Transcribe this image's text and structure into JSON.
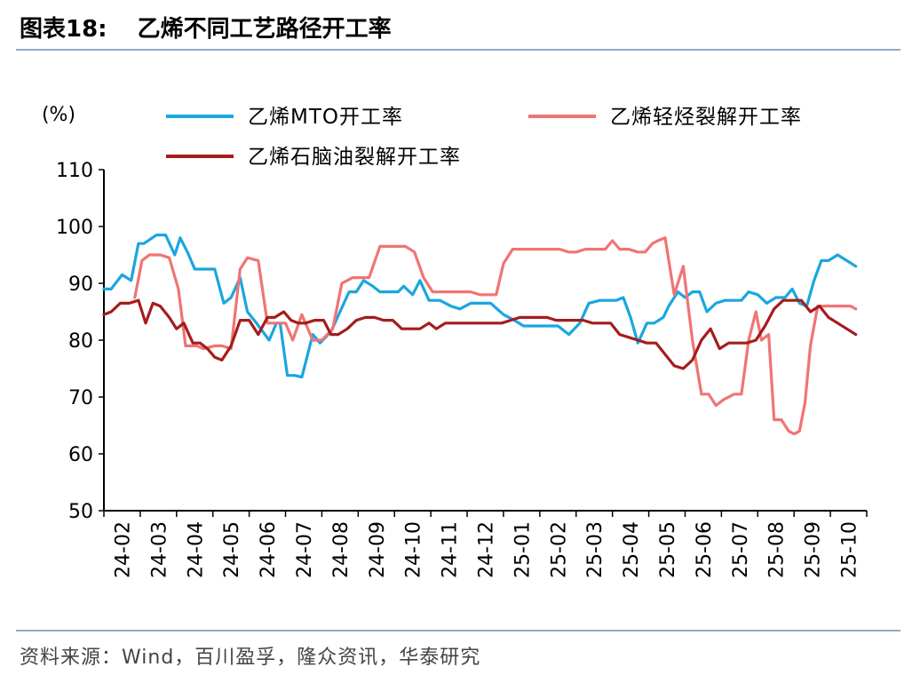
{
  "header": {
    "figure_label": "图表18:",
    "title": "乙烯不同工艺路径开工率"
  },
  "footer": {
    "source": "资料来源：Wind，百川盈孚，隆众资讯，华泰研究"
  },
  "colors": {
    "mto": "#1aa6df",
    "light": "#f07474",
    "naphtha": "#a61c1c",
    "rule": "#8ea9c8"
  },
  "chart_data": {
    "type": "line",
    "title": "乙烯不同工艺路径开工率",
    "ylabel": "(%)",
    "xlabel": "",
    "ylim": [
      50,
      110
    ],
    "yticks": [
      50,
      60,
      70,
      80,
      90,
      100,
      110
    ],
    "xlim": [
      0,
      21
    ],
    "xticks": [
      {
        "pos": 0,
        "label": "24-02"
      },
      {
        "pos": 1,
        "label": "24-03"
      },
      {
        "pos": 2,
        "label": "24-04"
      },
      {
        "pos": 3,
        "label": "24-05"
      },
      {
        "pos": 4,
        "label": "24-06"
      },
      {
        "pos": 5,
        "label": "24-07"
      },
      {
        "pos": 6,
        "label": "24-08"
      },
      {
        "pos": 7,
        "label": "24-09"
      },
      {
        "pos": 8,
        "label": "24-10"
      },
      {
        "pos": 9,
        "label": "24-11"
      },
      {
        "pos": 10,
        "label": "24-12"
      },
      {
        "pos": 11,
        "label": "25-01"
      },
      {
        "pos": 12,
        "label": "25-02"
      },
      {
        "pos": 13,
        "label": "25-03"
      },
      {
        "pos": 14,
        "label": "25-04"
      },
      {
        "pos": 15,
        "label": "25-05"
      },
      {
        "pos": 16,
        "label": "25-06"
      },
      {
        "pos": 17,
        "label": "25-07"
      },
      {
        "pos": 18,
        "label": "25-08"
      },
      {
        "pos": 19,
        "label": "25-09"
      },
      {
        "pos": 20,
        "label": "25-10"
      }
    ],
    "legend_position": "top",
    "series": [
      {
        "name": "乙烯MTO开工率",
        "color": "#1aa6df",
        "x": [
          0,
          0.2,
          0.5,
          0.75,
          0.95,
          1.1,
          1.45,
          1.7,
          1.95,
          2.1,
          2.3,
          2.5,
          2.75,
          3.05,
          3.3,
          3.5,
          3.75,
          3.95,
          4.2,
          4.55,
          4.75,
          4.85,
          5.05,
          5.25,
          5.45,
          5.75,
          5.95,
          6.25,
          6.5,
          6.75,
          6.95,
          7.15,
          7.4,
          7.6,
          7.85,
          8.1,
          8.25,
          8.5,
          8.7,
          8.95,
          9.25,
          9.55,
          9.8,
          10.1,
          10.4,
          10.65,
          11.0,
          11.3,
          11.55,
          11.8,
          12.15,
          12.5,
          12.8,
          13.1,
          13.35,
          13.65,
          13.9,
          14.1,
          14.3,
          14.5,
          14.7,
          14.95,
          15.15,
          15.4,
          15.55,
          15.8,
          16.0,
          16.2,
          16.4,
          16.6,
          16.85,
          17.1,
          17.35,
          17.55,
          17.75,
          18.0,
          18.25,
          18.5,
          18.75,
          18.95,
          19.15,
          19.35,
          19.55,
          19.75,
          19.95,
          20.2,
          20.45,
          20.7
        ],
        "y": [
          89,
          89,
          91.5,
          90.5,
          97,
          97,
          98.5,
          98.5,
          95,
          98,
          95.5,
          92.5,
          92.5,
          92.5,
          86.5,
          87.5,
          91,
          85,
          83,
          80,
          83,
          83,
          73.8,
          73.8,
          73.5,
          81,
          79.5,
          81.5,
          85,
          88.5,
          88.5,
          90.5,
          89.5,
          88.5,
          88.5,
          88.5,
          89.5,
          88,
          90.5,
          87,
          87,
          86,
          85.5,
          86.5,
          86.5,
          86.5,
          84.5,
          83.5,
          82.5,
          82.5,
          82.5,
          82.5,
          81,
          83,
          86.5,
          87,
          87,
          87,
          87.5,
          84,
          79.5,
          83,
          83,
          84,
          86,
          88.5,
          87.5,
          88.5,
          88.5,
          85,
          86.5,
          87,
          87,
          87,
          88.5,
          88,
          86.5,
          87.5,
          87.5,
          89,
          86.5,
          86,
          90.5,
          94,
          94,
          95,
          94,
          93
        ]
      },
      {
        "name": "乙烯轻烃裂解开工率",
        "color": "#f07474",
        "x": [
          0.85,
          1.05,
          1.25,
          1.55,
          1.8,
          2.05,
          2.25,
          2.55,
          2.75,
          3.05,
          3.25,
          3.5,
          3.75,
          3.95,
          4.25,
          4.5,
          4.75,
          5.0,
          5.2,
          5.45,
          5.75,
          6.0,
          6.3,
          6.55,
          6.85,
          7.05,
          7.3,
          7.6,
          7.85,
          8.05,
          8.3,
          8.55,
          8.8,
          9.05,
          9.3,
          9.6,
          9.85,
          10.1,
          10.35,
          10.55,
          10.8,
          11.0,
          11.25,
          11.5,
          11.75,
          12.0,
          12.3,
          12.55,
          12.8,
          13.0,
          13.25,
          13.55,
          13.8,
          14.0,
          14.2,
          14.45,
          14.7,
          14.9,
          15.1,
          15.25,
          15.45,
          15.7,
          15.95,
          16.2,
          16.45,
          16.65,
          16.85,
          17.05,
          17.35,
          17.55,
          17.75,
          17.95,
          18.1,
          18.3,
          18.45,
          18.65,
          18.85,
          19.0,
          19.15,
          19.3,
          19.45,
          19.65,
          19.85,
          20.05,
          20.3,
          20.55,
          20.7
        ],
        "y": [
          87.5,
          94,
          95,
          95,
          94.5,
          89,
          79,
          79,
          78.5,
          79,
          79,
          78.5,
          92.5,
          94.5,
          94,
          83,
          83,
          83,
          80,
          84.5,
          80,
          80,
          82,
          90,
          91,
          91,
          91,
          96.5,
          96.5,
          96.5,
          96.5,
          95.5,
          91,
          88.5,
          88.5,
          88.5,
          88.5,
          88.5,
          88,
          88,
          88,
          93.5,
          96,
          96,
          96,
          96,
          96,
          96,
          95.5,
          95.5,
          96,
          96,
          96,
          97.5,
          96,
          96,
          95.5,
          95.5,
          97,
          97.5,
          98,
          88,
          93,
          80,
          70.5,
          70.5,
          68.5,
          69.5,
          70.5,
          70.5,
          80,
          85,
          80,
          81,
          66,
          66,
          64,
          63.5,
          64,
          69,
          79,
          86,
          86,
          86,
          86,
          86,
          85.5
        ]
      },
      {
        "name": "乙烯石脑油裂解开工率",
        "color": "#a61c1c",
        "x": [
          0,
          0.2,
          0.45,
          0.7,
          0.95,
          1.15,
          1.35,
          1.55,
          1.8,
          2.0,
          2.2,
          2.45,
          2.65,
          2.85,
          3.05,
          3.25,
          3.5,
          3.75,
          4.0,
          4.25,
          4.5,
          4.7,
          4.95,
          5.15,
          5.35,
          5.55,
          5.8,
          6.05,
          6.25,
          6.45,
          6.7,
          6.95,
          7.2,
          7.45,
          7.7,
          7.95,
          8.2,
          8.45,
          8.7,
          8.95,
          9.15,
          9.4,
          9.7,
          9.95,
          10.2,
          10.45,
          10.7,
          10.95,
          11.2,
          11.45,
          11.7,
          11.95,
          12.2,
          12.45,
          12.7,
          12.95,
          13.2,
          13.45,
          13.7,
          13.95,
          14.2,
          14.45,
          14.7,
          14.95,
          15.2,
          15.45,
          15.7,
          15.95,
          16.2,
          16.45,
          16.7,
          16.95,
          17.2,
          17.45,
          17.7,
          17.95,
          18.2,
          18.45,
          18.7,
          18.95,
          19.2,
          19.45,
          19.7,
          19.95,
          20.2,
          20.45,
          20.7
        ],
        "y": [
          84.5,
          85,
          86.5,
          86.5,
          87,
          83,
          86.5,
          86,
          84,
          82,
          83,
          79.5,
          79.5,
          78.5,
          77,
          76.5,
          79,
          83.5,
          83.5,
          81,
          84,
          84,
          85,
          83.5,
          83,
          83,
          83.5,
          83.5,
          81,
          81,
          82,
          83.5,
          84,
          84,
          83.5,
          83.5,
          82,
          82,
          82,
          83,
          82,
          83,
          83,
          83,
          83,
          83,
          83,
          83,
          83.5,
          84,
          84,
          84,
          84,
          83.5,
          83.5,
          83.5,
          83.5,
          83,
          83,
          83,
          81,
          80.5,
          80,
          79.5,
          79.5,
          77.5,
          75.5,
          75,
          76.5,
          80,
          82,
          78.5,
          79.5,
          79.5,
          79.5,
          80,
          82.5,
          85.5,
          87,
          87,
          87,
          85,
          86,
          84,
          83,
          82,
          81
        ]
      }
    ]
  }
}
